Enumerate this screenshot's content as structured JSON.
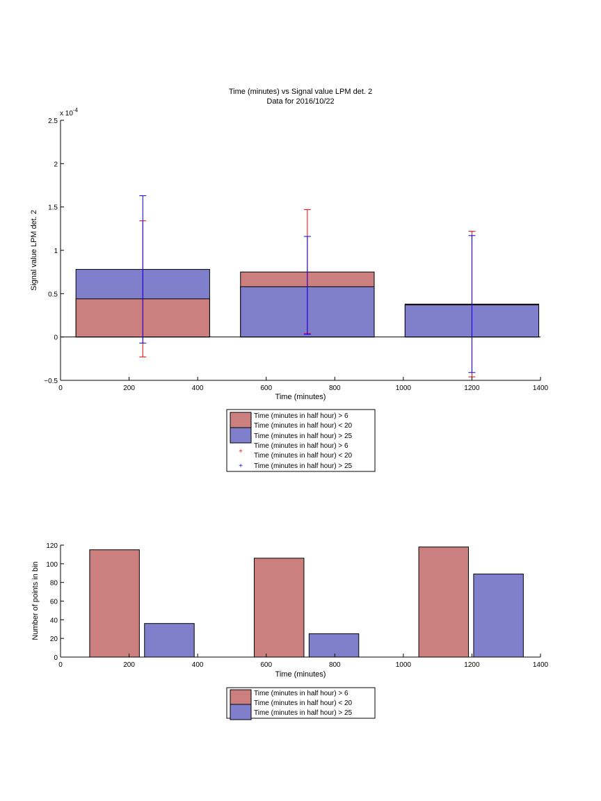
{
  "figure": {
    "title_line1": "Time (minutes) vs Signal value LPM det. 2",
    "title_line2": "Data for 2016/10/22"
  },
  "colors": {
    "red_fill": "#cc7f7f",
    "blue_fill": "#7f7fcc",
    "red_err": "#ff0000",
    "blue_err": "#0000ff",
    "axis": "#000000"
  },
  "legend1": {
    "entries": [
      {
        "line1": "Time (minutes in half hour) > 6",
        "line2": "Time (minutes in half hour) < 20",
        "marker": "red-bar"
      },
      {
        "line1": "Time (minutes in half hour) > 25",
        "marker": "blue-bar"
      },
      {
        "line1": "Time (minutes in half hour) > 6",
        "line2": "Time (minutes in half hour) < 20",
        "marker": "red-plus"
      },
      {
        "line1": "Time (minutes in half hour) > 25",
        "marker": "blue-plus"
      }
    ]
  },
  "legend2": {
    "entries": [
      {
        "line1": "Time (minutes in half hour) > 6",
        "line2": "Time (minutes in half hour) < 20",
        "marker": "red-bar"
      },
      {
        "line1": "Time (minutes in half hour) > 25",
        "marker": "blue-bar"
      }
    ]
  },
  "chart_data": [
    {
      "type": "bar",
      "title": "Time (minutes) vs Signal value LPM det. 2",
      "subtitle": "Data for 2016/10/22",
      "xlabel": "Time (minutes)",
      "ylabel": "Signal value LPM det. 2",
      "y_multiplier": "x 10",
      "y_multiplier_exp": "-4",
      "xlim": [
        0,
        1400
      ],
      "ylim": [
        -0.5,
        2.5
      ],
      "xticks": [
        0,
        200,
        400,
        600,
        800,
        1000,
        1200,
        1400
      ],
      "yticks": [
        -0.5,
        0,
        0.5,
        1,
        1.5,
        2,
        2.5
      ],
      "ytick_labels": [
        "−0.5",
        "0",
        "0.5",
        "1",
        "1.5",
        "2",
        "2.5"
      ],
      "bar_left": [
        45,
        525,
        1005
      ],
      "bar_right": [
        435,
        915,
        1395
      ],
      "categories": [
        240,
        720,
        1200
      ],
      "series": [
        {
          "name": "Time (minutes in half hour) > 6 / Time (minutes in half hour) < 20",
          "color": "#cc7f7f",
          "values": [
            0.44,
            0.75,
            0.38
          ],
          "err_low": [
            -0.23,
            0.04,
            -0.46
          ],
          "err_high": [
            1.34,
            1.47,
            1.22
          ],
          "err_color": "#ff0000"
        },
        {
          "name": "Time (minutes in half hour) > 25",
          "color": "#7f7fcc",
          "values": [
            0.78,
            0.58,
            0.37
          ],
          "err_low": [
            -0.07,
            0.03,
            -0.41
          ],
          "err_high": [
            1.63,
            1.16,
            1.17
          ],
          "err_color": "#0000ff"
        }
      ],
      "grid": false,
      "legend": "below"
    },
    {
      "type": "bar",
      "xlabel": "Time (minutes)",
      "ylabel": "Number of points in bin",
      "xlim": [
        0,
        1400
      ],
      "ylim": [
        0,
        120
      ],
      "xticks": [
        0,
        200,
        400,
        600,
        800,
        1000,
        1200,
        1400
      ],
      "yticks": [
        0,
        20,
        40,
        60,
        80,
        100,
        120
      ],
      "bars": [
        {
          "series": "Time (minutes in half hour) > 6 / Time (minutes in half hour) < 20",
          "x0": 85,
          "x1": 230,
          "value": 115,
          "color": "#cc7f7f"
        },
        {
          "series": "Time (minutes in half hour) > 25",
          "x0": 245,
          "x1": 390,
          "value": 36,
          "color": "#7f7fcc"
        },
        {
          "series": "Time (minutes in half hour) > 6 / Time (minutes in half hour) < 20",
          "x0": 565,
          "x1": 710,
          "value": 106,
          "color": "#cc7f7f"
        },
        {
          "series": "Time (minutes in half hour) > 25",
          "x0": 725,
          "x1": 870,
          "value": 25,
          "color": "#7f7fcc"
        },
        {
          "series": "Time (minutes in half hour) > 6 / Time (minutes in half hour) < 20",
          "x0": 1045,
          "x1": 1190,
          "value": 118,
          "color": "#cc7f7f"
        },
        {
          "series": "Time (minutes in half hour) > 25",
          "x0": 1205,
          "x1": 1350,
          "value": 89,
          "color": "#7f7fcc"
        }
      ],
      "grid": false,
      "legend": "below"
    }
  ]
}
